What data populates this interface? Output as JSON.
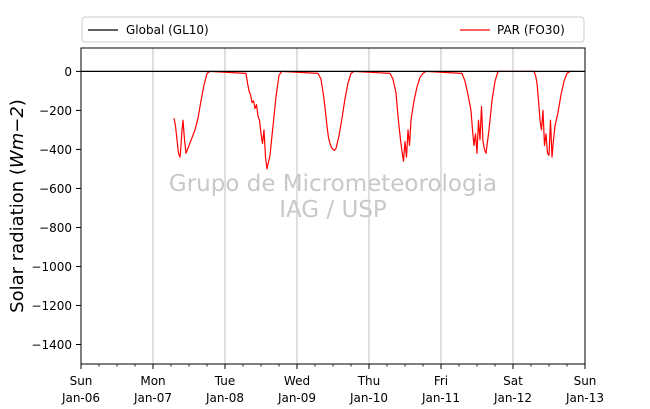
{
  "chart_data": {
    "type": "line",
    "ylabel": "Solar radiation ($Wm\\mathsf{-}2$)",
    "ylabel_parts": [
      "Solar radiation (",
      "Wm",
      "−2",
      ")"
    ],
    "xlim": [
      "2013-01-06T00:00",
      "2013-01-13T00:00"
    ],
    "ylim": [
      -1500,
      120
    ],
    "yticks": [
      0,
      -200,
      -400,
      -600,
      -800,
      -1000,
      -1200,
      -1400
    ],
    "ytick_labels": [
      "0",
      "−200",
      "−400",
      "−600",
      "−800",
      "−1000",
      "−1200",
      "−1400"
    ],
    "xticks": [
      {
        "day": "Sun",
        "date": "Jan-06"
      },
      {
        "day": "Mon",
        "date": "Jan-07"
      },
      {
        "day": "Tue",
        "date": "Jan-08"
      },
      {
        "day": "Wed",
        "date": "Jan-09"
      },
      {
        "day": "Thu",
        "date": "Jan-10"
      },
      {
        "day": "Fri",
        "date": "Jan-11"
      },
      {
        "day": "Sat",
        "date": "Jan-12"
      },
      {
        "day": "Sun",
        "date": "Jan-13"
      }
    ],
    "grid": "vertical",
    "legend_position": "top",
    "watermark": [
      "Grupo de Micrometeorologia",
      "IAG / USP"
    ],
    "series": [
      {
        "name": "Global (GL10)",
        "color": "#000000",
        "x": [
          "2013-01-06T00:00",
          "2013-01-13T00:00"
        ],
        "y": [
          0,
          0
        ]
      },
      {
        "name": "PAR (FO30)",
        "color": "#ff0000",
        "x": [
          "2013-01-07T07:00",
          "2013-01-07T07:30",
          "2013-01-07T08:00",
          "2013-01-07T08:30",
          "2013-01-07T09:00",
          "2013-01-07T09:20",
          "2013-01-07T09:40",
          "2013-01-07T10:00",
          "2013-01-07T10:30",
          "2013-01-07T11:00",
          "2013-01-07T11:30",
          "2013-01-07T12:00",
          "2013-01-07T13:00",
          "2013-01-07T14:00",
          "2013-01-07T15:00",
          "2013-01-07T16:00",
          "2013-01-07T17:00",
          "2013-01-07T18:00",
          "2013-01-07T19:00",
          "2013-01-08T07:00",
          "2013-01-08T07:30",
          "2013-01-08T08:00",
          "2013-01-08T08:30",
          "2013-01-08T09:00",
          "2013-01-08T09:30",
          "2013-01-08T10:00",
          "2013-01-08T10:30",
          "2013-01-08T11:00",
          "2013-01-08T11:30",
          "2013-01-08T12:00",
          "2013-01-08T12:30",
          "2013-01-08T13:00",
          "2013-01-08T13:30",
          "2013-01-08T14:00",
          "2013-01-08T15:00",
          "2013-01-08T16:00",
          "2013-01-08T17:00",
          "2013-01-08T18:00",
          "2013-01-08T19:00",
          "2013-01-09T07:00",
          "2013-01-09T08:00",
          "2013-01-09T09:00",
          "2013-01-09T10:00",
          "2013-01-09T10:30",
          "2013-01-09T11:00",
          "2013-01-09T11:30",
          "2013-01-09T12:00",
          "2013-01-09T12:30",
          "2013-01-09T13:00",
          "2013-01-09T14:00",
          "2013-01-09T15:00",
          "2013-01-09T16:00",
          "2013-01-09T17:00",
          "2013-01-09T18:00",
          "2013-01-09T19:00",
          "2013-01-10T07:00",
          "2013-01-10T08:00",
          "2013-01-10T09:00",
          "2013-01-10T09:30",
          "2013-01-10T10:00",
          "2013-01-10T10:30",
          "2013-01-10T11:00",
          "2013-01-10T11:30",
          "2013-01-10T12:00",
          "2013-01-10T12:30",
          "2013-01-10T13:00",
          "2013-01-10T13:30",
          "2013-01-10T14:00",
          "2013-01-10T15:00",
          "2013-01-10T16:00",
          "2013-01-10T17:00",
          "2013-01-10T18:00",
          "2013-01-10T19:00",
          "2013-01-11T07:00",
          "2013-01-11T08:00",
          "2013-01-11T09:00",
          "2013-01-11T10:00",
          "2013-01-11T10:30",
          "2013-01-11T11:00",
          "2013-01-11T11:30",
          "2013-01-11T12:00",
          "2013-01-11T12:30",
          "2013-01-11T13:00",
          "2013-01-11T13:30",
          "2013-01-11T14:00",
          "2013-01-11T14:30",
          "2013-01-11T15:00",
          "2013-01-11T16:00",
          "2013-01-11T17:00",
          "2013-01-11T18:00",
          "2013-01-11T19:00",
          "2013-01-12T07:00",
          "2013-01-12T07:30",
          "2013-01-12T08:00",
          "2013-01-12T08:30",
          "2013-01-12T09:00",
          "2013-01-12T09:30",
          "2013-01-12T10:00",
          "2013-01-12T10:30",
          "2013-01-12T11:00",
          "2013-01-12T11:30",
          "2013-01-12T12:00",
          "2013-01-12T12:30",
          "2013-01-12T13:00",
          "2013-01-12T13:30",
          "2013-01-12T14:00",
          "2013-01-12T15:00",
          "2013-01-12T16:00",
          "2013-01-12T17:00",
          "2013-01-12T18:00",
          "2013-01-12T19:00",
          "2013-01-12T20:00"
        ],
        "y": [
          -240,
          -280,
          -350,
          -420,
          -440,
          -380,
          -300,
          -250,
          -350,
          -420,
          -400,
          -380,
          -340,
          -300,
          -240,
          -150,
          -70,
          -10,
          0,
          -10,
          -60,
          -100,
          -120,
          -160,
          -150,
          -190,
          -170,
          -230,
          -250,
          -320,
          -370,
          -300,
          -440,
          -500,
          -430,
          -280,
          -130,
          -20,
          0,
          -10,
          -40,
          -140,
          -280,
          -340,
          -370,
          -390,
          -400,
          -405,
          -395,
          -330,
          -240,
          -140,
          -60,
          -10,
          0,
          -10,
          -40,
          -110,
          -200,
          -280,
          -350,
          -410,
          -460,
          -360,
          -440,
          -300,
          -380,
          -250,
          -150,
          -80,
          -30,
          -10,
          0,
          -10,
          -50,
          -120,
          -200,
          -300,
          -380,
          -320,
          -420,
          -250,
          -350,
          -180,
          -360,
          -400,
          -420,
          -300,
          -150,
          -50,
          0,
          0,
          -20,
          -60,
          -150,
          -250,
          -300,
          -200,
          -380,
          -320,
          -420,
          -430,
          -250,
          -440,
          -350,
          -280,
          -210,
          -120,
          -50,
          -10,
          0,
          0
        ]
      }
    ]
  }
}
